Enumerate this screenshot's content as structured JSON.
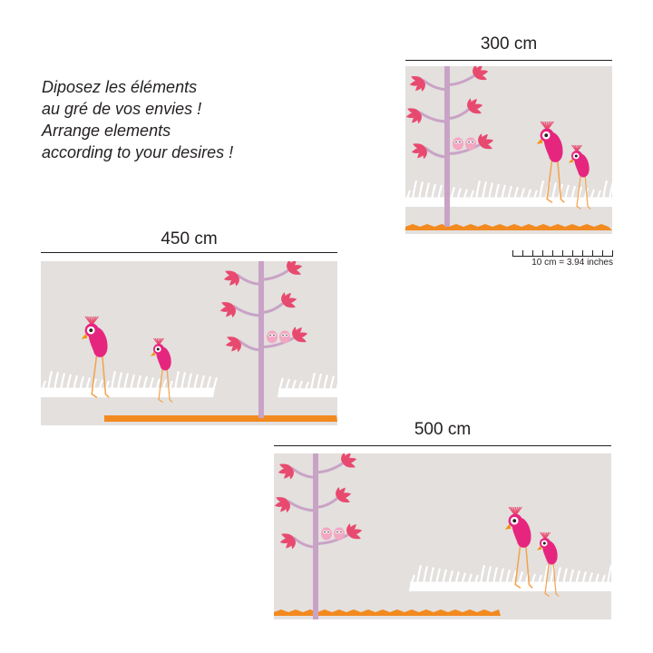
{
  "instructions": {
    "lines": [
      "Diposez les éléments",
      "au gré de vos envies !",
      "Arrange elements",
      "according to your desires !"
    ]
  },
  "panels": [
    {
      "width_label": "300 cm"
    },
    {
      "width_label": "450 cm"
    },
    {
      "width_label": "500 cm"
    }
  ],
  "scale": {
    "label": "10 cm = 3.94 inches"
  },
  "colors": {
    "background": "#e3e0de",
    "trunk": "#c9a3c6",
    "leaf": "#e84a6f",
    "bird": "#e6267e",
    "beak": "#f39200",
    "legs": "#f5a24b",
    "grass": "#ffffff",
    "ground": "#f28a1f"
  }
}
